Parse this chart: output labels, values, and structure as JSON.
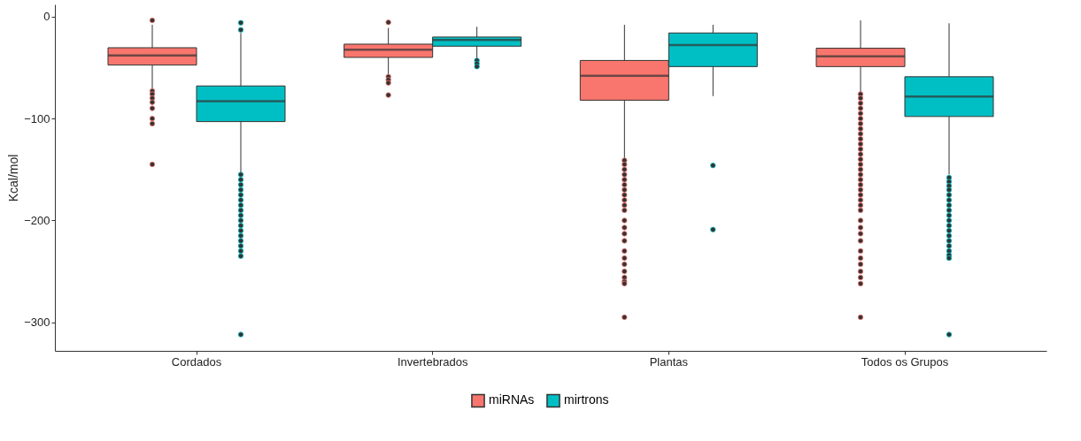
{
  "chart_data": {
    "type": "box",
    "ylabel": "Kcal/mol",
    "categories": [
      "Cordados",
      "Invertebrados",
      "Plantas",
      "Todos os Grupos"
    ],
    "ylim": [
      -328,
      12
    ],
    "yticks": [
      0,
      -100,
      -200,
      -300
    ],
    "grid": false,
    "legend": "bottom",
    "series": [
      {
        "name": "miRNAs",
        "color": "#f8766d",
        "boxes": [
          {
            "low": -72,
            "q1": -47.5,
            "median": -38,
            "q3": -30.5,
            "high": -8,
            "outliers": [
              -3.7,
              -73,
              -76,
              -80,
              -84,
              -90,
              -100,
              -105,
              -145
            ]
          },
          {
            "low": -57,
            "q1": -40,
            "median": -32.5,
            "q3": -27,
            "high": -11,
            "outliers": [
              -5.6,
              -59,
              -62,
              -65,
              -77
            ]
          },
          {
            "low": -139,
            "q1": -82,
            "median": -58,
            "q3": -43,
            "high": -8,
            "outliers": [
              -141,
              -145,
              -150,
              -155,
              -160,
              -165,
              -170,
              -175,
              -180,
              -185,
              -190,
              -200,
              -207,
              -213,
              -220,
              -230,
              -237,
              -243,
              -250,
              -256,
              -260,
              -262,
              -295
            ]
          },
          {
            "low": -74,
            "q1": -49,
            "median": -39,
            "q3": -31,
            "high": -3.7,
            "outliers": [
              -76,
              -80,
              -85,
              -90,
              -95,
              -100,
              -105,
              -110,
              -115,
              -120,
              -125,
              -130,
              -135,
              -140,
              -145,
              -150,
              -155,
              -160,
              -165,
              -170,
              -175,
              -180,
              -185,
              -190,
              -200,
              -207,
              -213,
              -220,
              -230,
              -237,
              -243,
              -250,
              -256,
              -262,
              -295
            ]
          }
        ]
      },
      {
        "name": "mirtrons",
        "color": "#00bfc4",
        "boxes": [
          {
            "low": -153,
            "q1": -103,
            "median": -83,
            "q3": -68,
            "high": -16,
            "outliers": [
              -6,
              -13,
              -155,
              -160,
              -165,
              -170,
              -175,
              -180,
              -185,
              -190,
              -195,
              -200,
              -205,
              -210,
              -215,
              -220,
              -225,
              -230,
              -235,
              -312
            ]
          },
          {
            "low": -42,
            "q1": -29,
            "median": -23,
            "q3": -20,
            "high": -10,
            "outliers": [
              -43,
              -46,
              -49
            ]
          },
          {
            "low": -78,
            "q1": -49,
            "median": -28,
            "q3": -16,
            "high": -8,
            "outliers": [
              -146,
              -209
            ]
          },
          {
            "low": -155,
            "q1": -98,
            "median": -78.5,
            "q3": -59,
            "high": -6.5,
            "outliers": [
              -158,
              -162,
              -166,
              -170,
              -175,
              -180,
              -185,
              -190,
              -195,
              -200,
              -205,
              -210,
              -215,
              -220,
              -225,
              -230,
              -234,
              -237,
              -312
            ]
          }
        ]
      }
    ]
  }
}
